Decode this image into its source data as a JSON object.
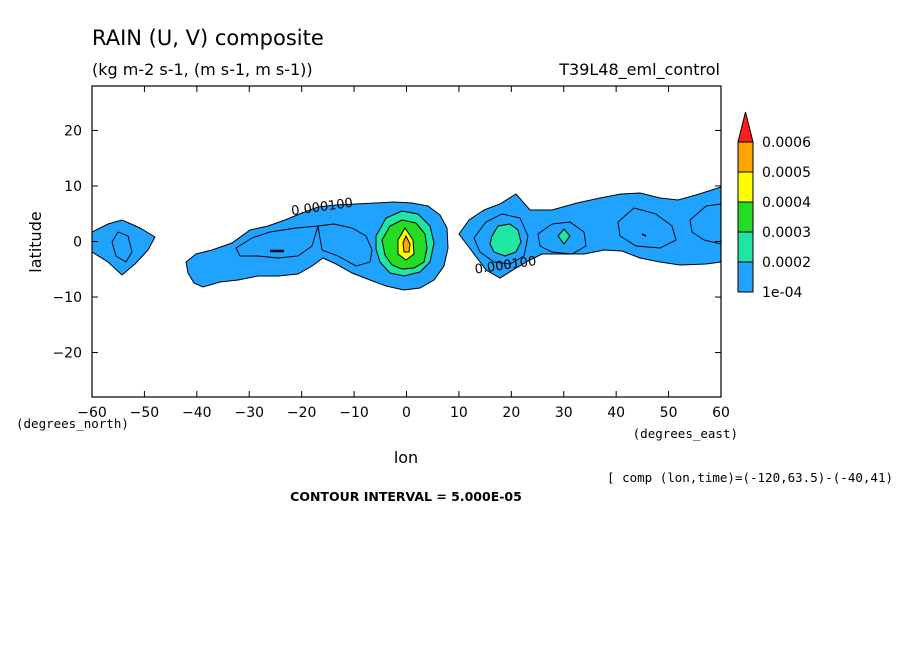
{
  "chart_data": {
    "type": "contour",
    "title": "RAIN (U, V) composite",
    "subtitle": "(kg m-2 s-1, (m s-1, m s-1))",
    "experiment": "T39L48_eml_control",
    "xlabel": "lon",
    "ylabel": "latitude",
    "x_unit": "(degrees_east)",
    "y_unit": "(degrees_north)",
    "xlim": [
      -60,
      60
    ],
    "ylim": [
      -28,
      28
    ],
    "x_ticks": [
      -60,
      -50,
      -40,
      -30,
      -20,
      -10,
      0,
      10,
      20,
      30,
      40,
      50,
      60
    ],
    "y_ticks": [
      -20,
      -10,
      0,
      10,
      20
    ],
    "contour_interval_label": "CONTOUR INTERVAL = 5.000E-05",
    "composite_info": "[ comp (lon,time)=(-120,63.5)-(-40,41)",
    "contour_labels": [
      {
        "text": "0.000100",
        "lon": -16,
        "lat": 5.5
      },
      {
        "text": "0.000100",
        "lon": 19,
        "lat": -5
      }
    ],
    "colorbar": {
      "levels": [
        {
          "label": "1e-04",
          "color": "#1fa3ff"
        },
        {
          "label": "0.0002",
          "color": "#1fe6a0"
        },
        {
          "label": "0.0003",
          "color": "#23dc23"
        },
        {
          "label": "0.0004",
          "color": "#ffff00"
        },
        {
          "label": "0.0005",
          "color": "#ffa500"
        },
        {
          "label": "0.0006",
          "color": "#ff1e1e"
        }
      ]
    }
  }
}
